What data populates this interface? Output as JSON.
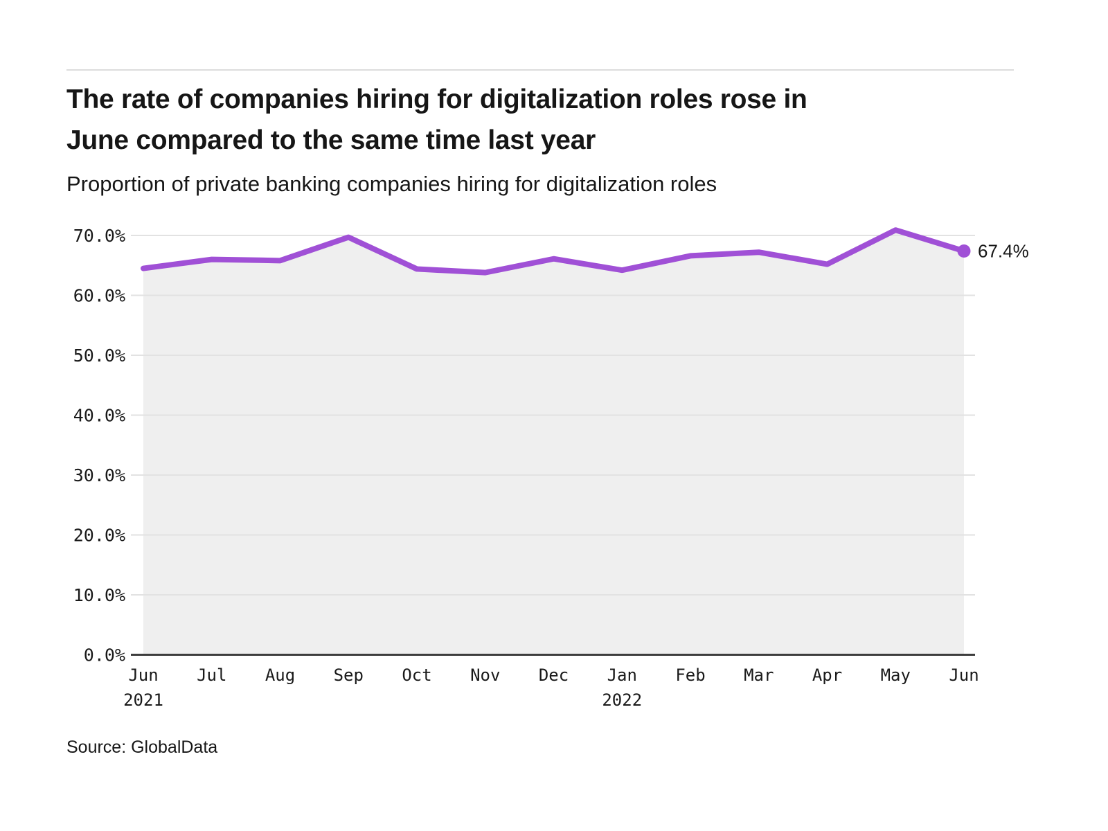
{
  "header": {
    "title_lines": [
      "The rate of companies hiring for digitalization roles rose in",
      "June compared to the same time last year"
    ],
    "subtitle": "Proportion of private banking companies hiring for digitalization roles"
  },
  "chart_data": {
    "type": "line",
    "title": "The rate of companies hiring for digitalization roles rose in June compared to the same time last year",
    "subtitle": "Proportion of private banking companies hiring for digitalization roles",
    "categories": [
      "Jun",
      "Jul",
      "Aug",
      "Sep",
      "Oct",
      "Nov",
      "Dec",
      "Jan",
      "Feb",
      "Mar",
      "Apr",
      "May",
      "Jun"
    ],
    "year_labels": [
      {
        "index": 0,
        "label": "2021"
      },
      {
        "index": 7,
        "label": "2022"
      }
    ],
    "series": [
      {
        "name": "Proportion of private banking companies hiring for digitalization roles",
        "values": [
          64.5,
          66.0,
          65.8,
          69.7,
          64.4,
          63.8,
          66.1,
          64.2,
          66.6,
          67.2,
          65.2,
          70.9,
          67.4
        ]
      }
    ],
    "ylim": [
      0,
      70
    ],
    "y_tick_values": [
      0,
      10,
      20,
      30,
      40,
      50,
      60,
      70
    ],
    "y_tick_labels": [
      "0.0%",
      "10.0%",
      "20.0%",
      "30.0%",
      "40.0%",
      "50.0%",
      "60.0%",
      "70.0%"
    ],
    "end_label": "67.4%",
    "grid": true,
    "legend": "none",
    "line_color": "#a050d6",
    "area_color": "#efefef",
    "gridline_color": "#e2e2e2",
    "axis_color": "#3d3d3d",
    "label_color": "#191919"
  },
  "footer": {
    "source": "Source: GlobalData"
  }
}
